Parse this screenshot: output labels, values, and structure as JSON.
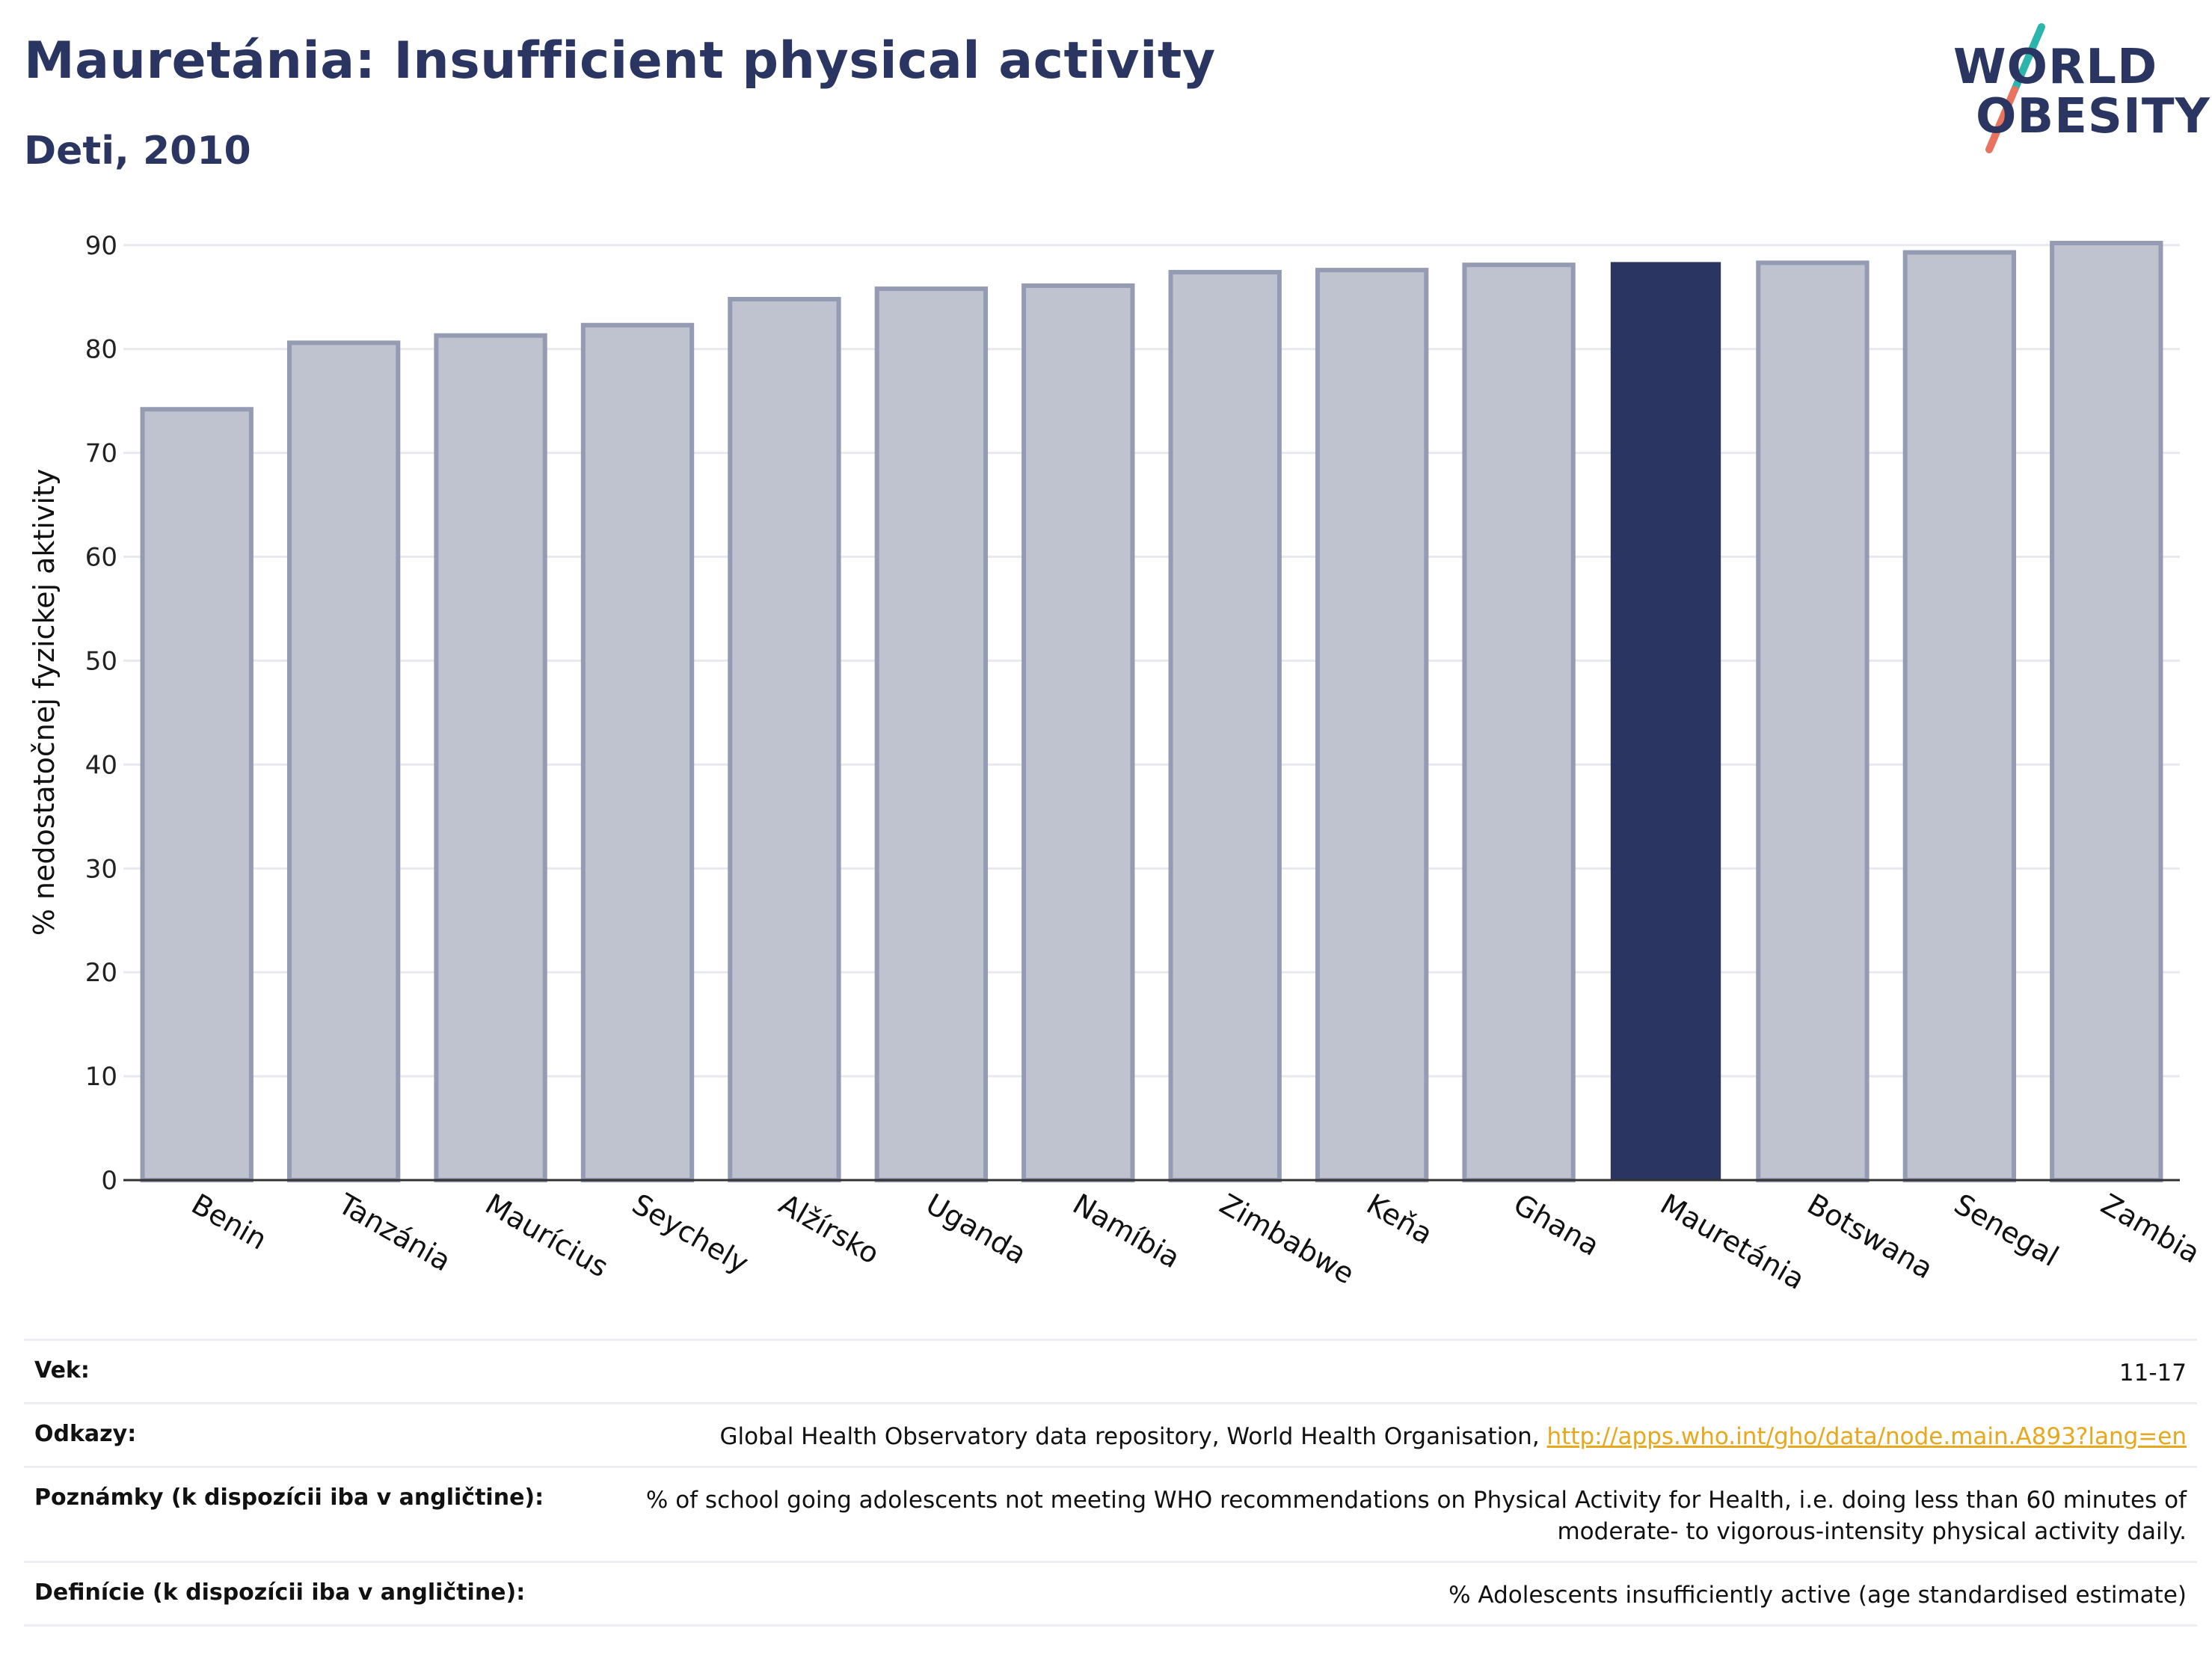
{
  "header": {
    "title": "Mauretánia: Insufficient physical activity",
    "subtitle": "Deti, 2010"
  },
  "logo": {
    "line1": "WORLD",
    "line2": "OBESITY",
    "colors": {
      "text": "#2a3561",
      "slash_teal": "#2bb5ac",
      "slash_coral": "#e8735e"
    }
  },
  "chart_data": {
    "type": "bar",
    "ylabel": "% nedostatočnej fyzickej aktivity",
    "xlabel": "",
    "ylim": [
      0,
      92
    ],
    "yticks": [
      0,
      10,
      20,
      30,
      40,
      50,
      60,
      70,
      80,
      90
    ],
    "grid": true,
    "categories": [
      "Benin",
      "Tanzánia",
      "Maurícius",
      "Seychely",
      "Alžírsko",
      "Uganda",
      "Namíbia",
      "Zimbabwe",
      "Keňa",
      "Ghana",
      "Mauretánia",
      "Botswana",
      "Senegal",
      "Zambia"
    ],
    "values": [
      74.2,
      80.6,
      81.3,
      82.3,
      84.8,
      85.8,
      86.1,
      87.4,
      87.6,
      88.1,
      88.3,
      88.3,
      89.3,
      90.2
    ],
    "highlight": "Mauretánia",
    "colors": {
      "bar": "#bfc3d0",
      "bar_border": "#959bb3",
      "highlight": "#2a3561",
      "grid": "#e8e9ee",
      "axis": "#333333"
    }
  },
  "meta": {
    "rows": [
      {
        "label": "Vek:",
        "value": "11-17"
      },
      {
        "label": "Odkazy:",
        "value": "Global Health Observatory data repository, World Health Organisation, ",
        "link": "http://apps.who.int/gho/data/node.main.A893?lang=en"
      },
      {
        "label": "Poznámky (k dispozícii iba v angličtine):",
        "value": "% of school going adolescents not meeting WHO recommendations on Physical Activity for Health, i.e. doing less than 60 minutes of moderate- to vigorous-intensity physical activity daily."
      },
      {
        "label": "Definície (k dispozícii iba v angličtine):",
        "value": "% Adolescents insufficiently active (age standardised estimate)"
      }
    ]
  }
}
